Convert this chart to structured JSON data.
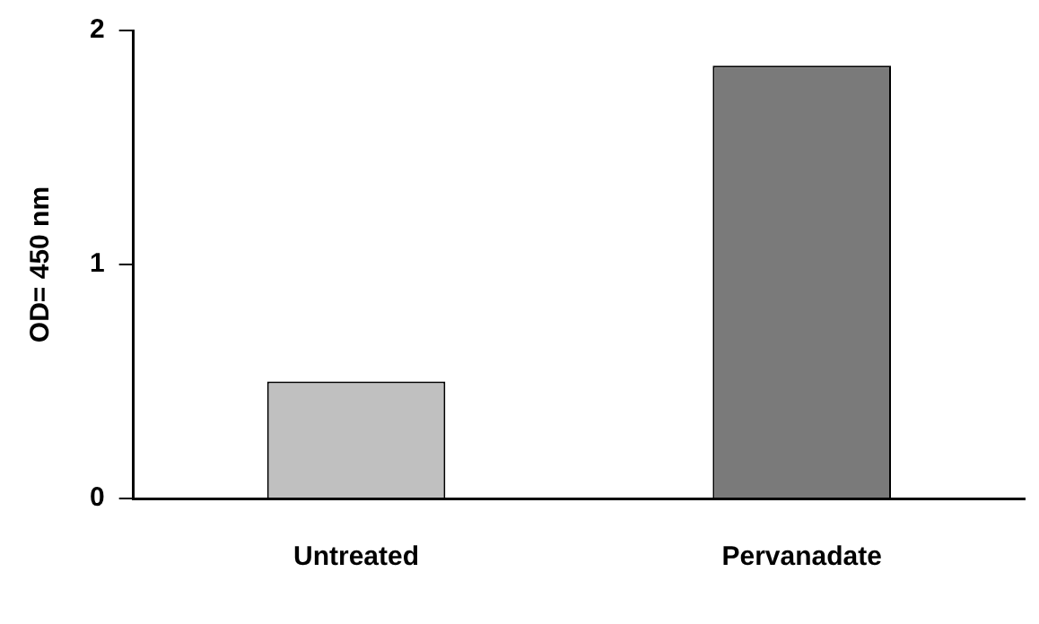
{
  "chart_data": {
    "type": "bar",
    "ylabel": "OD= 450 nm",
    "categories": [
      "Untreated",
      "Pervanadate"
    ],
    "values": [
      0.5,
      1.85
    ],
    "colors": [
      "#c0c0c0",
      "#7a7a7a"
    ],
    "ylim": [
      0,
      2
    ],
    "yticks": [
      0,
      1,
      2
    ],
    "grid": false
  }
}
